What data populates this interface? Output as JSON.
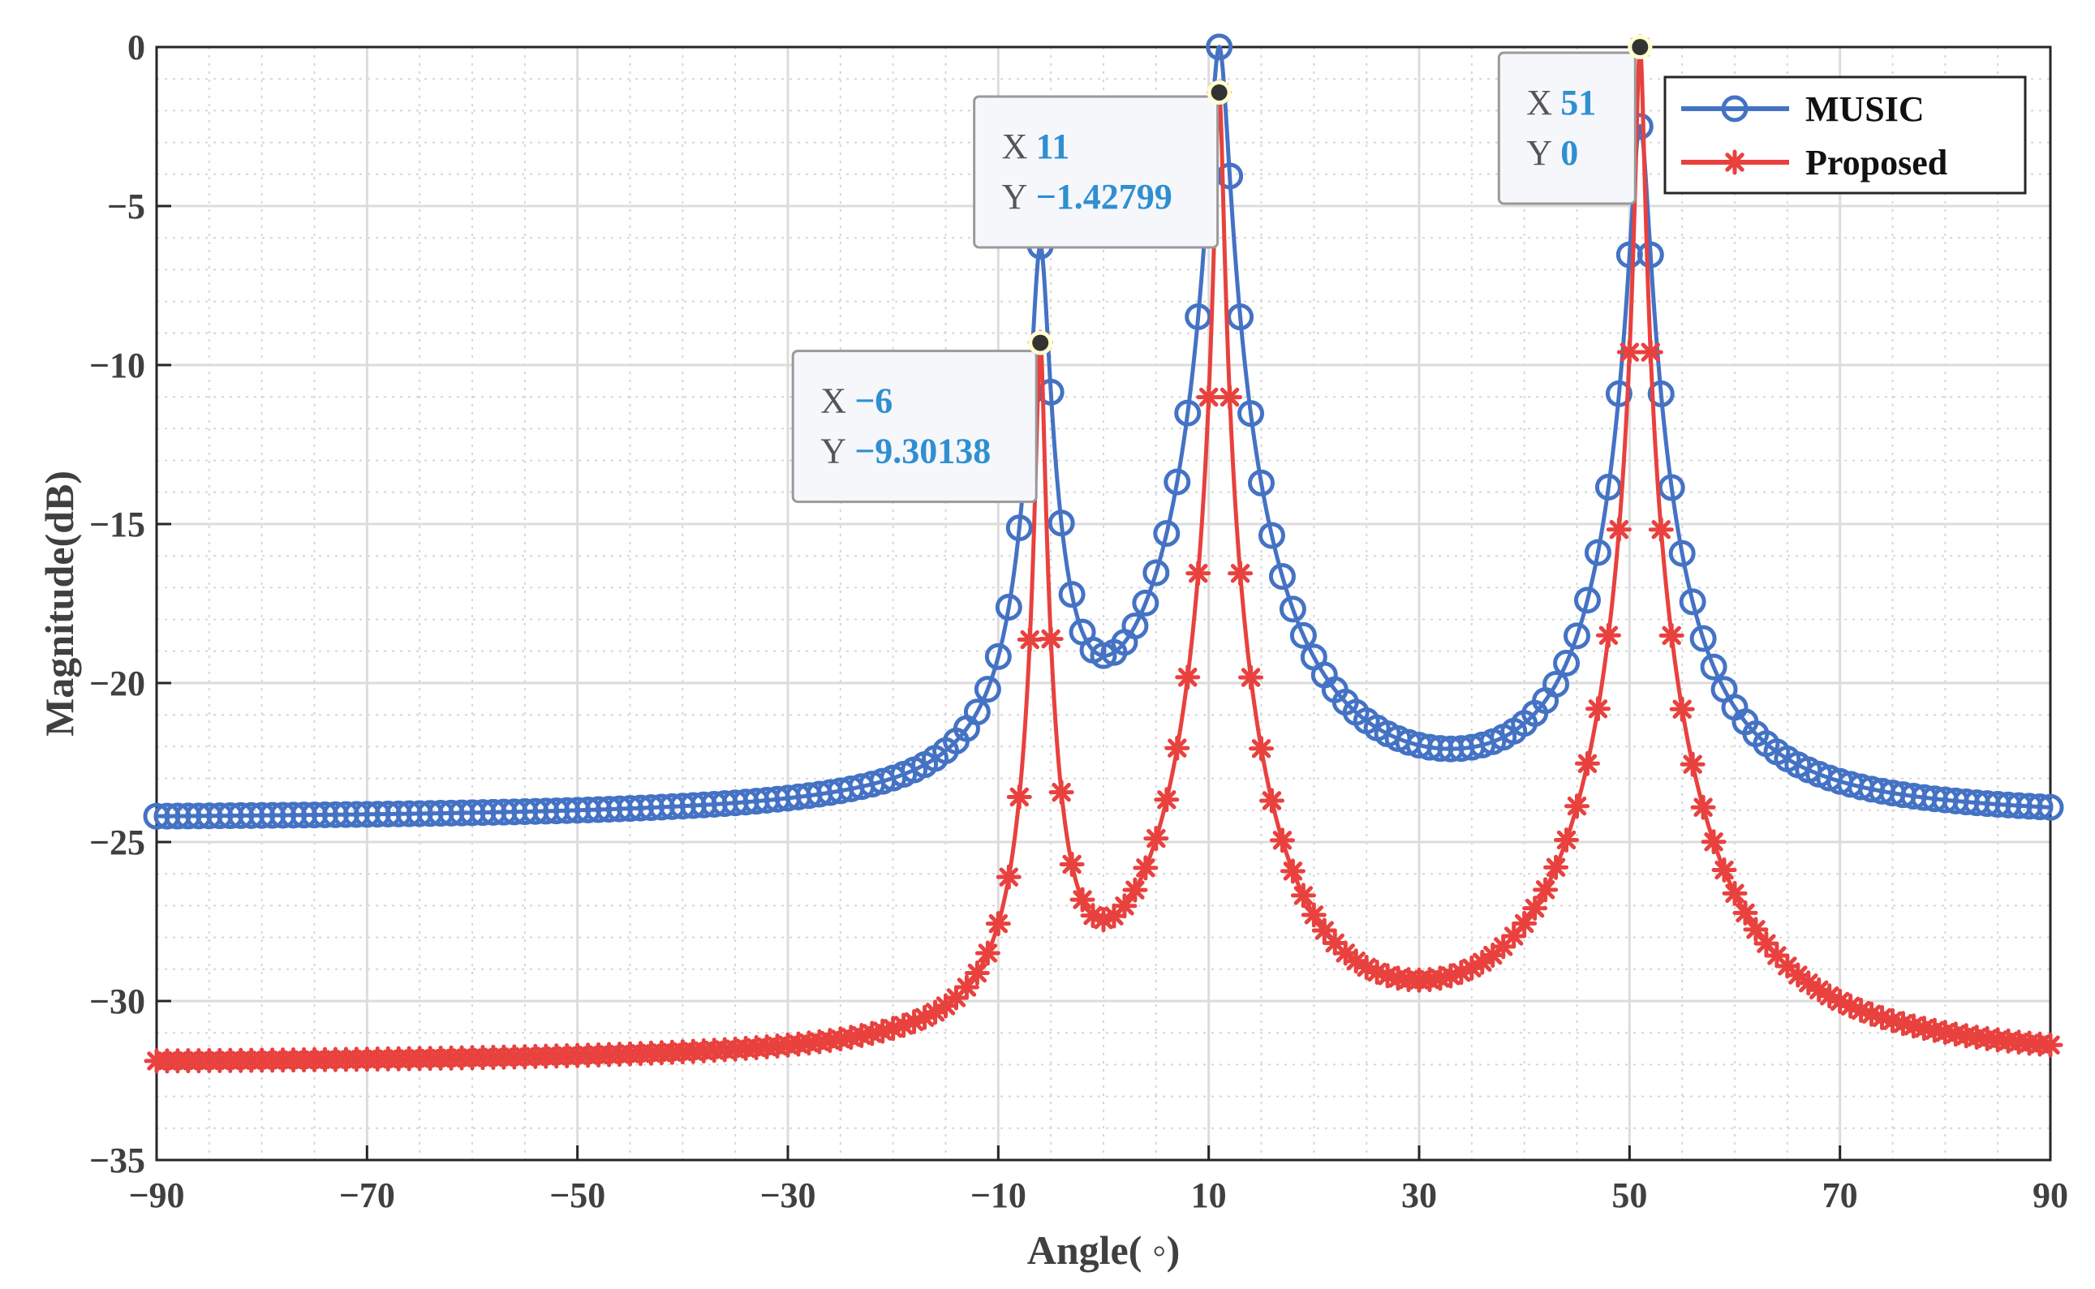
{
  "chart_data": {
    "type": "line",
    "xlabel": "Angle( ◦)",
    "ylabel": "Magnitude(dB)",
    "xlim": [
      -90,
      90
    ],
    "ylim": [
      -35,
      0
    ],
    "xticks": [
      -90,
      -70,
      -50,
      -30,
      -10,
      10,
      30,
      50,
      70,
      90
    ],
    "xtick_labels": [
      "−90",
      "−70",
      "−50",
      "−30",
      "−10",
      "10",
      "30",
      "50",
      "70",
      "90"
    ],
    "yticks": [
      0,
      -5,
      -10,
      -15,
      -20,
      -25,
      -30,
      -35
    ],
    "ytick_labels": [
      "0",
      "−5",
      "−10",
      "−15",
      "−20",
      "−25",
      "−30",
      "−35"
    ],
    "grid": true,
    "legend_position": "top-right",
    "series": [
      {
        "name": "MUSIC",
        "color": "#4472c4",
        "marker": "circle",
        "baseline": -24.3,
        "peaks": [
          {
            "x": -6,
            "peak": -6.3,
            "width": 0.7
          },
          {
            "x": 11,
            "peak": 0,
            "width": 0.8
          },
          {
            "x": 51,
            "peak": -2.5,
            "width": 0.8
          }
        ],
        "x_range": [
          -90,
          90
        ],
        "step": 1
      },
      {
        "name": "Proposed",
        "color": "#e8413e",
        "marker": "asterisk",
        "baseline": -32.0,
        "peaks": [
          {
            "x": -6,
            "peak": -9.30138,
            "width": 0.35
          },
          {
            "x": 11,
            "peak": -1.42799,
            "width": 0.35
          },
          {
            "x": 51,
            "peak": 0,
            "width": 0.35
          }
        ],
        "x_range": [
          -90,
          90
        ],
        "step": 1
      }
    ],
    "datatips": [
      {
        "x_label": "X",
        "x_value": "−6",
        "y_label": "Y",
        "y_value": "−9.30138",
        "point_x": -6,
        "point_y": -9.30138
      },
      {
        "x_label": "X",
        "x_value": "11",
        "y_label": "Y",
        "y_value": "−1.42799",
        "point_x": 11,
        "point_y": -1.42799
      },
      {
        "x_label": "X",
        "x_value": "51",
        "y_label": "Y",
        "y_value": "0",
        "point_x": 51,
        "point_y": 0
      }
    ]
  }
}
